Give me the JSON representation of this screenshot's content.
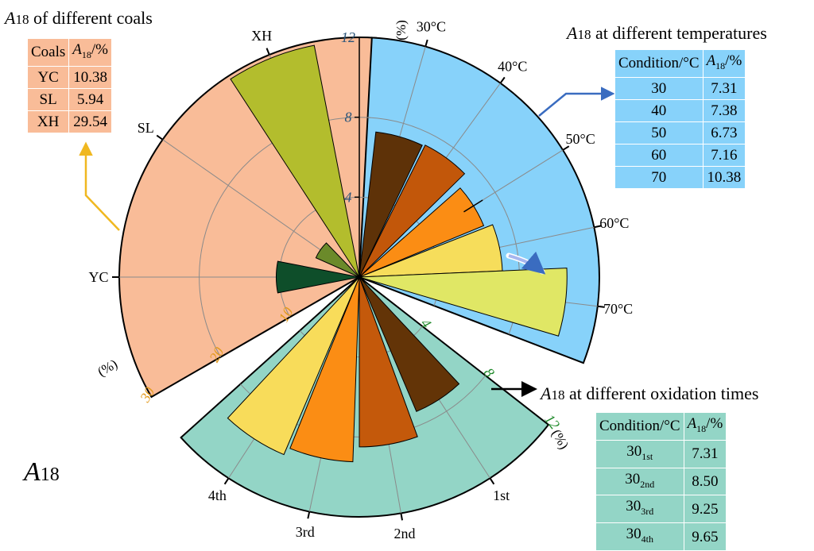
{
  "colors": {
    "coals_fan": "#f9bc98",
    "temp_fan": "#87d2fa",
    "oxid_fan": "#93d5c6",
    "grid": "#8a8a8a",
    "orange_axis": "#e39a1c",
    "blue_axis": "#2a557a",
    "green_axis": "#1f8a2a"
  },
  "main_label": {
    "sym": "A",
    "sub": "18"
  },
  "headings": {
    "coals": {
      "sym": "A",
      "sub": "18",
      "text": " of different coals"
    },
    "temps": {
      "sym": "A",
      "sub": "18",
      "text": " at different temperatures"
    },
    "oxid": {
      "sym": "A",
      "sub": "18",
      "text": " at different oxidation times"
    }
  },
  "tables": {
    "coals": {
      "header": [
        "Coals",
        "A",
        "18",
        "/%"
      ],
      "rows": [
        [
          "YC",
          "10.38"
        ],
        [
          "SL",
          "5.94"
        ],
        [
          "XH",
          "29.54"
        ]
      ]
    },
    "temps": {
      "header": [
        "Condition/°C",
        "A",
        "18",
        "/%"
      ],
      "rows": [
        [
          "30",
          "7.31"
        ],
        [
          "40",
          "7.38"
        ],
        [
          "50",
          "6.73"
        ],
        [
          "60",
          "7.16"
        ],
        [
          "70",
          "10.38"
        ]
      ]
    },
    "oxid": {
      "header": [
        "Condition/°C",
        "A",
        "18",
        "/%"
      ],
      "rows": [
        [
          "30",
          "1st",
          "7.31"
        ],
        [
          "30",
          "2nd",
          "8.50"
        ],
        [
          "30",
          "3rd",
          "9.25"
        ],
        [
          "30",
          "4th",
          "9.65"
        ]
      ]
    }
  },
  "chart_data": [
    {
      "type": "bar",
      "subtype": "polar-rose",
      "group": "coals",
      "categories": [
        "YC",
        "SL",
        "XH"
      ],
      "values": [
        10.38,
        5.94,
        29.54
      ],
      "colors": [
        "#0e4e2a",
        "#6b8a2a",
        "#b3bd2d"
      ],
      "rlim": [
        0,
        30
      ],
      "ticks": [
        "10",
        "20",
        "30"
      ],
      "unit_label": "(%)"
    },
    {
      "type": "bar",
      "subtype": "polar-rose",
      "group": "temperatures",
      "categories": [
        "30°C",
        "40°C",
        "50°C",
        "60°C",
        "70°C"
      ],
      "values": [
        7.31,
        7.38,
        6.73,
        7.16,
        10.38
      ],
      "colors": [
        "#5e3208",
        "#c2570a",
        "#fb8d14",
        "#f6dd5b",
        "#e0e765"
      ],
      "rlim": [
        0,
        12
      ],
      "ticks": [
        "4",
        "8",
        "12"
      ],
      "unit_label": "(%)"
    },
    {
      "type": "bar",
      "subtype": "polar-rose",
      "group": "oxidation times",
      "categories": [
        "1st",
        "2nd",
        "3rd",
        "4th"
      ],
      "values": [
        7.31,
        8.5,
        9.25,
        9.65
      ],
      "colors": [
        "#633407",
        "#c4590b",
        "#fb8d14",
        "#f8dc5a"
      ],
      "rlim": [
        0,
        12
      ],
      "ticks": [
        "4",
        "8",
        "12"
      ],
      "unit_label": "(%)"
    }
  ]
}
